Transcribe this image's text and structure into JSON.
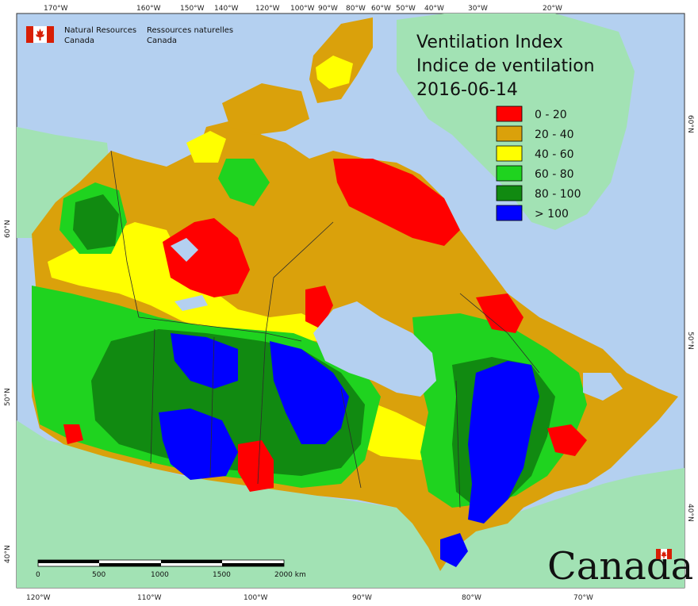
{
  "title": {
    "line1": "Ventilation Index",
    "line2": "Indice de ventilation",
    "date": "2016-06-14"
  },
  "agency": {
    "en_line1": "Natural Resources",
    "en_line2": "Canada",
    "fr_line1": "Ressources naturelles",
    "fr_line2": "Canada"
  },
  "wordmark": "Canada",
  "legend": [
    {
      "label": "0 - 20",
      "color": "#ff0000"
    },
    {
      "label": "20 - 40",
      "color": "#daa10b"
    },
    {
      "label": "40 - 60",
      "color": "#ffff00"
    },
    {
      "label": "60 - 80",
      "color": "#1fd31f"
    },
    {
      "label": "80 - 100",
      "color": "#118a11"
    },
    {
      "label": "> 100",
      "color": "#0000ff"
    }
  ],
  "scale_bar": {
    "ticks": [
      "0",
      "500",
      "1000",
      "1500",
      "2000 km"
    ]
  },
  "graticule": {
    "top": [
      "170°W",
      "160°W",
      "150°W",
      "140°W",
      "120°W",
      "100°W",
      "90°W",
      "80°W",
      "60°W",
      "50°W",
      "40°W",
      "30°W",
      "20°W"
    ],
    "bottom": [
      "120°W",
      "110°W",
      "100°W",
      "90°W",
      "80°W",
      "70°W"
    ],
    "left": [
      "60°N",
      "50°N",
      "40°N"
    ],
    "right": [
      "60°N",
      "50°N",
      "40°N"
    ]
  },
  "colors": {
    "ocean": "#b4d0f0",
    "land_other": "#a2e2b4"
  }
}
